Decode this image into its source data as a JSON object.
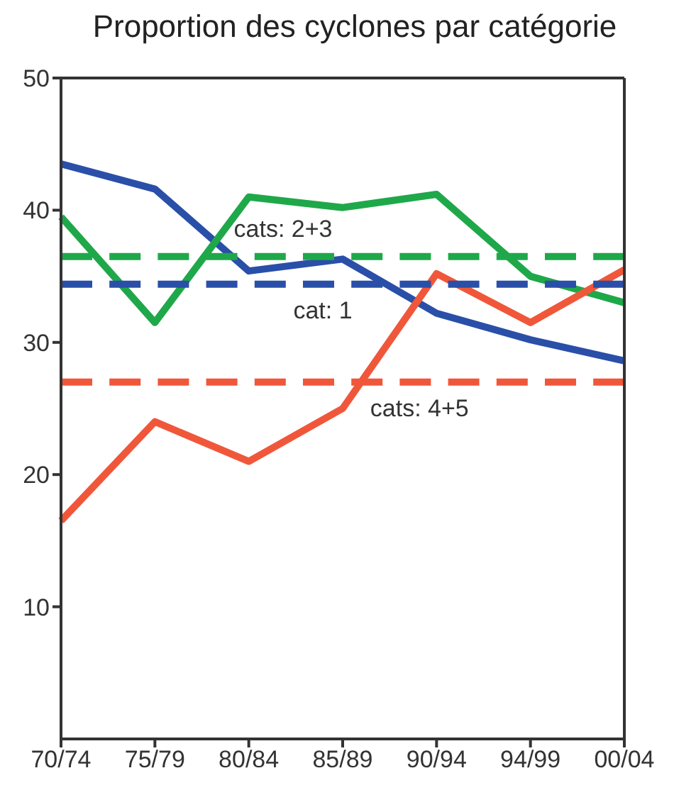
{
  "chart_data": {
    "type": "line",
    "title": "Proportion des cyclones par catégorie",
    "categories": [
      "70/74",
      "75/79",
      "80/84",
      "85/89",
      "90/94",
      "94/99",
      "00/04"
    ],
    "series": [
      {
        "color": "#2a4fa8",
        "values": [
          43.5,
          41.6,
          35.4,
          36.3,
          32.2,
          30.2,
          28.6
        ]
      },
      {
        "color": "#1fa84a",
        "values": [
          39.5,
          31.5,
          41.0,
          40.2,
          41.2,
          35.0,
          33.0
        ]
      },
      {
        "color": "#f0573a",
        "values": [
          16.5,
          24.0,
          21.0,
          25.0,
          35.2,
          31.5,
          35.5
        ]
      },
      {
        "name": "cats: 2+3",
        "color": "#1fa84a",
        "line_style": "dashed",
        "values": [
          36.5,
          36.5,
          36.5,
          36.5,
          36.5,
          36.5,
          36.5
        ]
      },
      {
        "name": "cat: 1",
        "color": "#2a4fa8",
        "line_style": "dashed",
        "values": [
          34.4,
          34.4,
          34.4,
          34.4,
          34.4,
          34.4,
          34.4
        ]
      },
      {
        "name": "cats: 4+5",
        "color": "#f0573a",
        "line_style": "dashed",
        "values": [
          27.0,
          27.0,
          27.0,
          27.0,
          27.0,
          27.0,
          27.0
        ]
      }
    ],
    "ylim": [
      0,
      50
    ],
    "yticks": [
      10,
      20,
      30,
      40,
      50
    ],
    "grid": false,
    "legend": false,
    "marker": "none",
    "line_style": "solid"
  }
}
